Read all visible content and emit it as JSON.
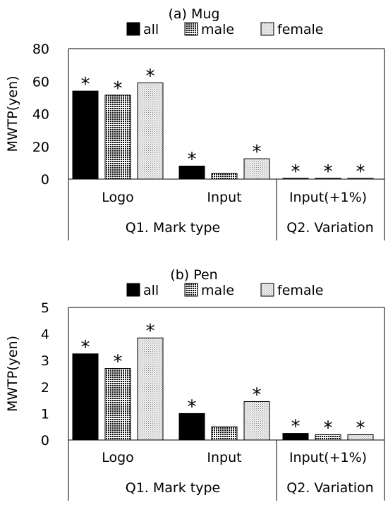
{
  "chart_data": [
    {
      "type": "bar",
      "title": "(a) Mug",
      "ylabel": "MWTP(yen)",
      "ylim": [
        0,
        80
      ],
      "yticks": [
        0,
        20,
        40,
        60,
        80
      ],
      "categories": [
        "Logo",
        "Input",
        "Input(+1%)"
      ],
      "groups": [
        {
          "label": "Q1. Mark type",
          "categories": [
            "Logo",
            "Input"
          ]
        },
        {
          "label": "Q2. Variation",
          "categories": [
            "Input(+1%)"
          ]
        }
      ],
      "series": [
        {
          "name": "all",
          "values": [
            54,
            8,
            0.5
          ],
          "significant": [
            true,
            true,
            true
          ]
        },
        {
          "name": "male",
          "values": [
            51.5,
            3.5,
            0.5
          ],
          "significant": [
            true,
            false,
            true
          ]
        },
        {
          "name": "female",
          "values": [
            59,
            12.5,
            0.5
          ],
          "significant": [
            true,
            true,
            true
          ]
        }
      ],
      "significance_marker": "*",
      "legend": "top"
    },
    {
      "type": "bar",
      "title": "(b) Pen",
      "ylabel": "MWTP(yen)",
      "ylim": [
        0,
        5
      ],
      "yticks": [
        0,
        1,
        2,
        3,
        4,
        5
      ],
      "categories": [
        "Logo",
        "Input",
        "Input(+1%)"
      ],
      "groups": [
        {
          "label": "Q1. Mark type",
          "categories": [
            "Logo",
            "Input"
          ]
        },
        {
          "label": "Q2. Variation",
          "categories": [
            "Input(+1%)"
          ]
        }
      ],
      "series": [
        {
          "name": "all",
          "values": [
            3.25,
            1.0,
            0.25
          ],
          "significant": [
            true,
            true,
            true
          ]
        },
        {
          "name": "male",
          "values": [
            2.7,
            0.5,
            0.2
          ],
          "significant": [
            true,
            false,
            true
          ]
        },
        {
          "name": "female",
          "values": [
            3.85,
            1.45,
            0.2
          ],
          "significant": [
            true,
            true,
            true
          ]
        }
      ],
      "significance_marker": "*",
      "legend": "top"
    }
  ]
}
